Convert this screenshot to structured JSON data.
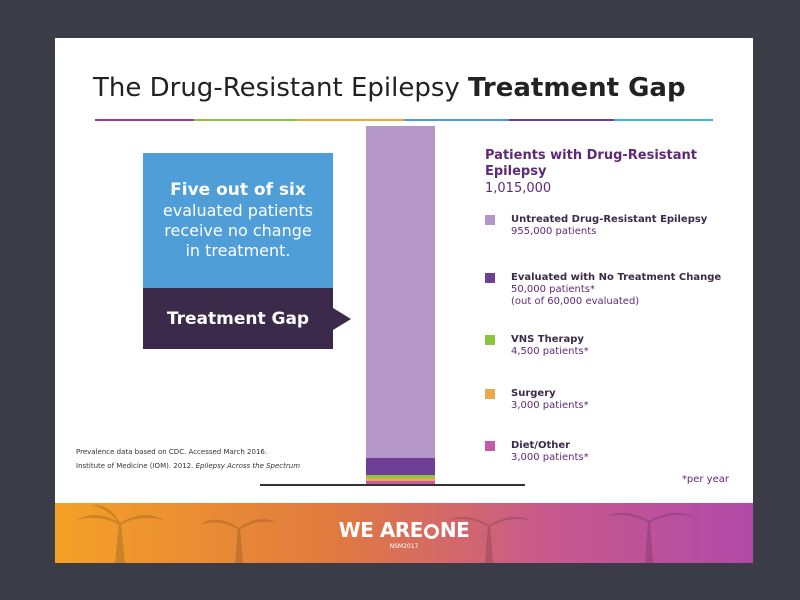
{
  "slide": {
    "title_normal": "The Drug-Resistant Epilepsy ",
    "title_bold": "Treatment Gap",
    "callout": {
      "bold_line": "Five out of six",
      "rest": "evaluated patients\nreceive no change\nin treatment."
    },
    "gap_label": "Treatment Gap",
    "heading": {
      "label": "Patients with Drug-Resistant Epilepsy",
      "total": "1,015,000"
    },
    "per_year_note": "*per year",
    "sources": {
      "line1": "Prevalence data based on CDC.  Accessed March 2016.",
      "line2_prefix": "Institute of Medicine (IOM). 2012. ",
      "line2_italic": "Epilepsy Across the Spectrum"
    },
    "footer": {
      "logo_left": "WE ARE",
      "logo_right": "NE",
      "sub": "NSM2017"
    }
  },
  "chart_data": {
    "type": "bar",
    "stacked": true,
    "total": 1015000,
    "series": [
      {
        "name": "Untreated Drug-Resistant Epilepsy",
        "value": 955000,
        "detail": "955,000 patients",
        "color": "#b596c9"
      },
      {
        "name": "Evaluated with No Treatment Change",
        "value": 50000,
        "detail": "50,000 patients*\n(out of 60,000 evaluated)",
        "color": "#6f3f98"
      },
      {
        "name": "VNS Therapy",
        "value": 4500,
        "detail": "4,500 patients*",
        "color": "#8cc63f"
      },
      {
        "name": "Surgery",
        "value": 3000,
        "detail": "3,000 patients*",
        "color": "#eaa94a"
      },
      {
        "name": "Diet/Other",
        "value": 3000,
        "detail": "3,000 patients*",
        "color": "#c45ba8"
      }
    ]
  }
}
